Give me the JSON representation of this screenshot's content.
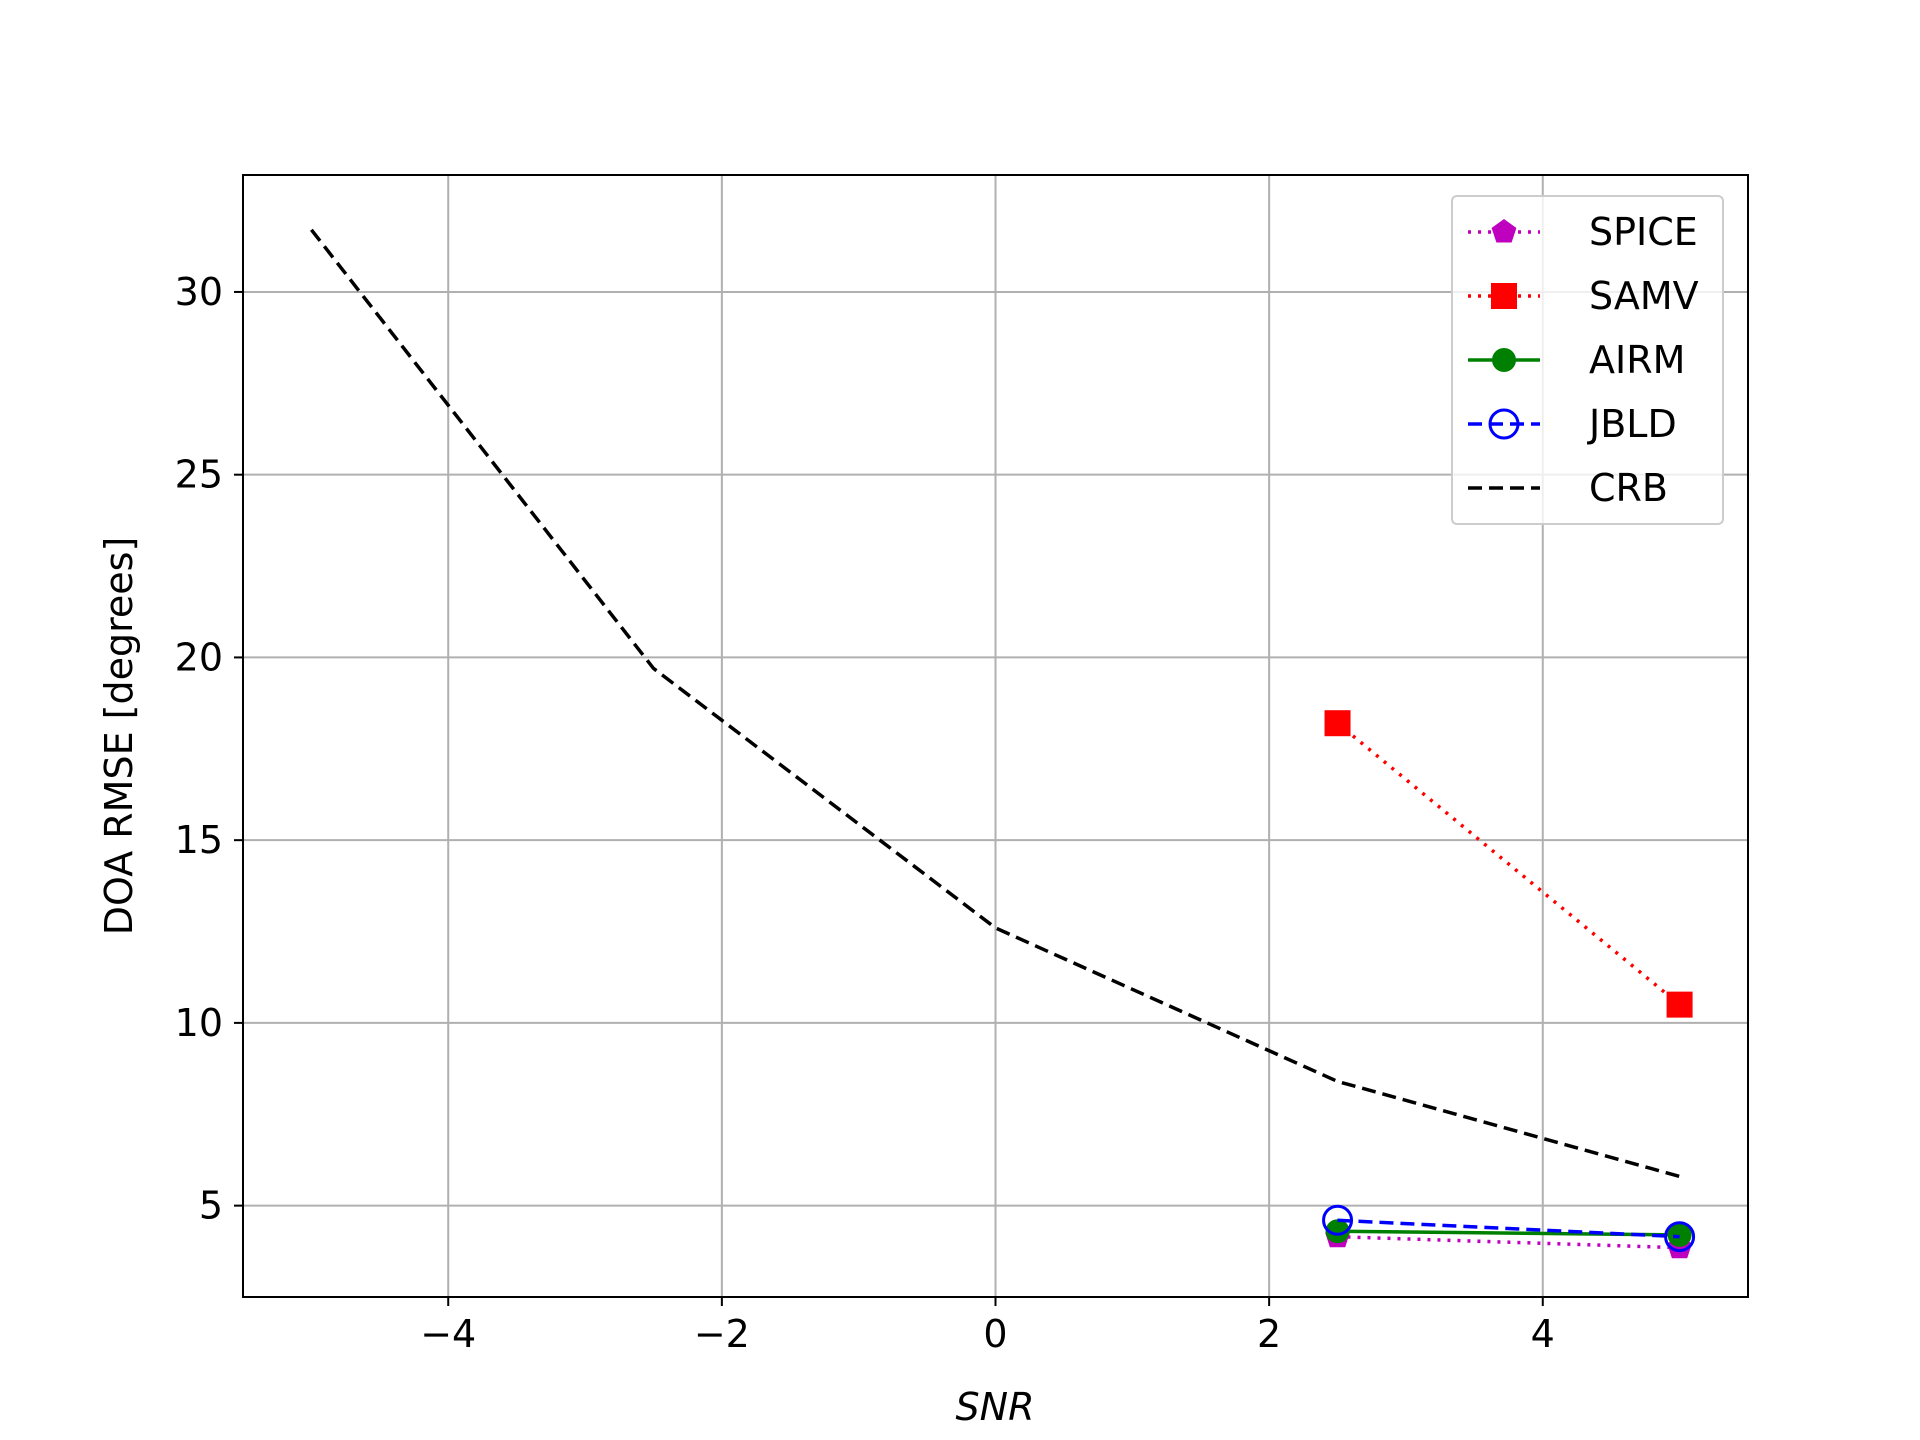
{
  "chart_data": {
    "type": "line",
    "title": "",
    "xlabel": "SNR",
    "ylabel": "DOA RMSE [degrees]",
    "xlim": [
      -5.5,
      5.5
    ],
    "ylim": [
      2.5,
      33.2
    ],
    "xticks": [
      -4,
      -2,
      0,
      2,
      4
    ],
    "xtick_labels": [
      "−4",
      "−2",
      "0",
      "2",
      "4"
    ],
    "yticks": [
      5,
      10,
      15,
      20,
      25,
      30
    ],
    "ytick_labels": [
      "5",
      "10",
      "15",
      "20",
      "25",
      "30"
    ],
    "grid": true,
    "legend_position": "top-right",
    "series": [
      {
        "name": "SPICE",
        "color": "#bf00bf",
        "line_style": "dotted",
        "marker": "pentagon-filled",
        "x": [
          2.5,
          5
        ],
        "y": [
          4.15,
          3.85
        ]
      },
      {
        "name": "SAMV",
        "color": "#ff0000",
        "line_style": "dotted",
        "marker": "square-filled",
        "x": [
          2.5,
          5
        ],
        "y": [
          18.2,
          10.5
        ]
      },
      {
        "name": "AIRM",
        "color": "#008000",
        "line_style": "solid",
        "marker": "circle-filled",
        "x": [
          2.5,
          5
        ],
        "y": [
          4.3,
          4.2
        ]
      },
      {
        "name": "JBLD",
        "color": "#0000ff",
        "line_style": "dashed",
        "marker": "circle-open",
        "x": [
          2.5,
          5
        ],
        "y": [
          4.6,
          4.15
        ]
      },
      {
        "name": "CRB",
        "color": "#000000",
        "line_style": "dashed",
        "marker": "none",
        "x": [
          -5,
          -2.5,
          0,
          2.5,
          5
        ],
        "y": [
          31.7,
          19.7,
          12.6,
          8.4,
          5.8
        ]
      }
    ]
  }
}
